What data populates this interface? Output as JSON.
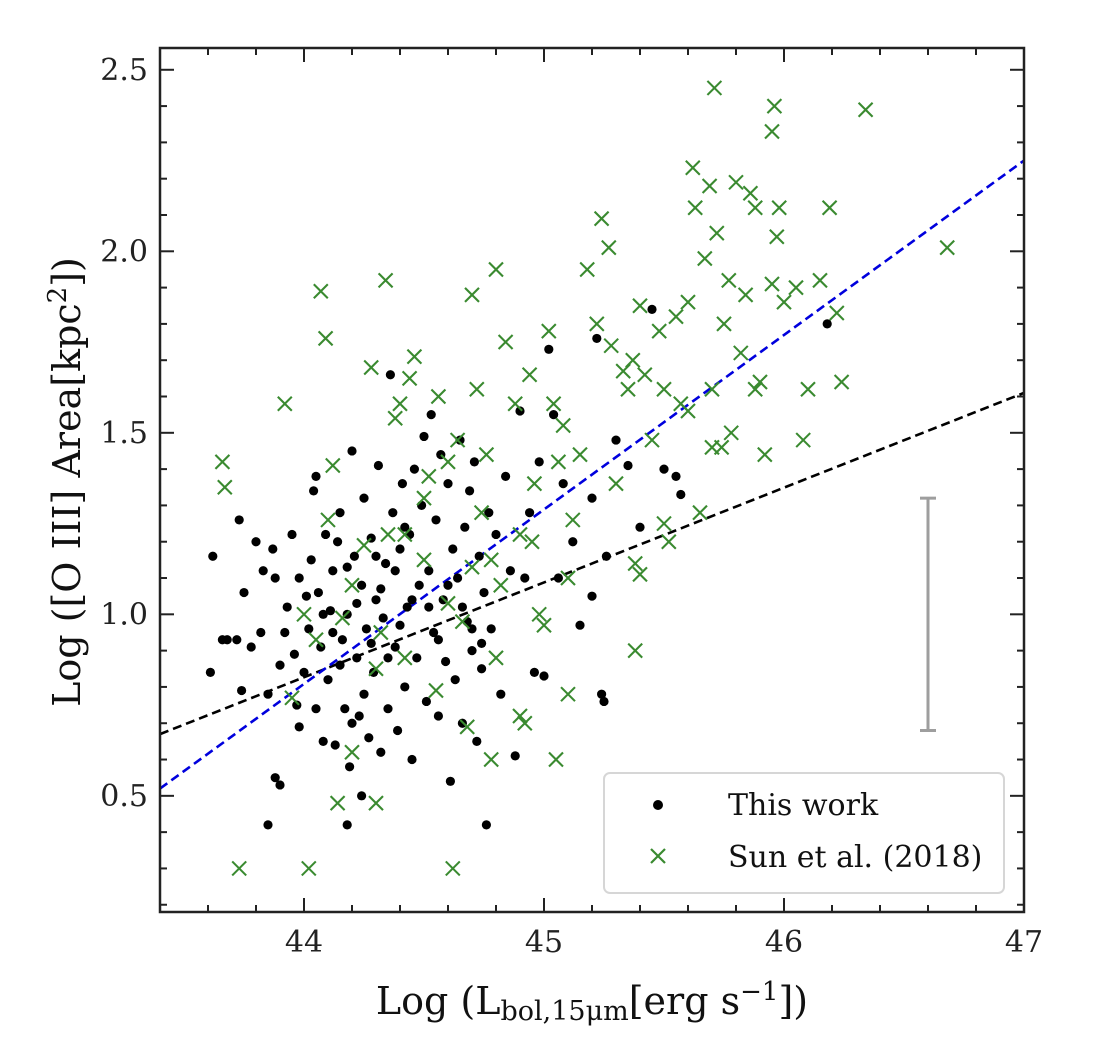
{
  "chart_data": {
    "type": "scatter",
    "title": "",
    "xlabel": {
      "main": "Log (L",
      "sub": "bol,15μm",
      "bracket": "[erg s",
      "sup": "−1",
      "end": "])"
    },
    "ylabel": {
      "main": "Log ([O III] Area[kpc",
      "sup": "2",
      "end": "])"
    },
    "xlim": [
      43.4,
      47.0
    ],
    "ylim": [
      0.18,
      2.56
    ],
    "x_major_ticks": [
      44,
      45,
      46,
      47
    ],
    "x_tick_labels": [
      "44",
      "45",
      "46",
      "47"
    ],
    "y_major_ticks": [
      0.5,
      1.0,
      1.5,
      2.0,
      2.5
    ],
    "y_tick_labels": [
      "0.5",
      "1.0",
      "1.5",
      "2.0",
      "2.5"
    ],
    "grid": false,
    "legend_position": "lower-right",
    "legend": [
      {
        "label": "This work",
        "marker": "dot",
        "color": "#000000"
      },
      {
        "label": "Sun et al. (2018)",
        "marker": "x",
        "color": "#3a8a30"
      }
    ],
    "fit_lines": [
      {
        "color": "#000000",
        "style": "dashed",
        "x": [
          43.4,
          47.0
        ],
        "y": [
          0.67,
          1.61
        ]
      },
      {
        "color": "#0000dd",
        "style": "dashed",
        "x": [
          43.4,
          47.0
        ],
        "y": [
          0.52,
          2.25
        ]
      }
    ],
    "error_bar": {
      "x": 46.6,
      "y_low": 0.68,
      "y_high": 1.32,
      "color": "#9e9e9e"
    },
    "series": [
      {
        "name": "This work",
        "marker": "dot",
        "color": "#000000",
        "points": [
          [
            43.62,
            1.16
          ],
          [
            43.61,
            0.84
          ],
          [
            43.66,
            0.93
          ],
          [
            43.68,
            0.93
          ],
          [
            43.72,
            0.93
          ],
          [
            43.74,
            0.79
          ],
          [
            43.73,
            1.26
          ],
          [
            43.75,
            1.06
          ],
          [
            43.78,
            0.91
          ],
          [
            43.8,
            1.2
          ],
          [
            43.82,
            0.95
          ],
          [
            43.83,
            1.12
          ],
          [
            43.85,
            0.78
          ],
          [
            43.87,
            1.18
          ],
          [
            43.88,
            1.1
          ],
          [
            43.9,
            0.86
          ],
          [
            43.92,
            0.95
          ],
          [
            43.93,
            1.02
          ],
          [
            43.95,
            1.22
          ],
          [
            43.96,
            0.89
          ],
          [
            43.97,
            0.75
          ],
          [
            43.98,
            1.1
          ],
          [
            44.0,
            0.84
          ],
          [
            44.01,
            1.05
          ],
          [
            44.02,
            0.96
          ],
          [
            44.03,
            1.15
          ],
          [
            44.04,
            1.34
          ],
          [
            44.05,
            1.38
          ],
          [
            44.06,
            1.06
          ],
          [
            44.07,
            0.91
          ],
          [
            44.08,
            0.65
          ],
          [
            44.09,
            1.22
          ],
          [
            44.1,
            0.82
          ],
          [
            44.11,
            1.01
          ],
          [
            44.12,
            1.12
          ],
          [
            44.13,
            0.64
          ],
          [
            44.14,
            1.2
          ],
          [
            44.15,
            1.28
          ],
          [
            44.16,
            0.93
          ],
          [
            44.17,
            0.74
          ],
          [
            44.18,
            1.0
          ],
          [
            44.19,
            0.58
          ],
          [
            44.2,
            1.45
          ],
          [
            44.21,
            1.16
          ],
          [
            44.22,
            0.88
          ],
          [
            44.23,
            0.72
          ],
          [
            44.24,
            1.08
          ],
          [
            44.25,
            1.32
          ],
          [
            44.26,
            0.96
          ],
          [
            44.27,
            0.66
          ],
          [
            44.28,
            1.21
          ],
          [
            44.29,
            0.84
          ],
          [
            44.3,
            1.04
          ],
          [
            44.31,
            1.41
          ],
          [
            44.32,
            0.62
          ],
          [
            44.33,
            0.99
          ],
          [
            44.34,
            1.14
          ],
          [
            44.35,
            0.74
          ],
          [
            44.36,
            1.66
          ],
          [
            44.37,
            1.28
          ],
          [
            44.38,
            0.91
          ],
          [
            44.39,
            0.68
          ],
          [
            44.4,
            1.18
          ],
          [
            44.41,
            1.36
          ],
          [
            44.42,
            0.8
          ],
          [
            44.43,
            1.02
          ],
          [
            44.44,
            1.22
          ],
          [
            44.45,
            0.6
          ],
          [
            44.46,
            1.4
          ],
          [
            44.47,
            0.88
          ],
          [
            44.48,
            1.08
          ],
          [
            44.49,
            1.3
          ],
          [
            44.5,
            1.49
          ],
          [
            44.51,
            0.76
          ],
          [
            44.52,
            1.12
          ],
          [
            44.53,
            1.55
          ],
          [
            44.54,
            0.95
          ],
          [
            44.55,
            1.26
          ],
          [
            44.56,
            0.72
          ],
          [
            44.57,
            1.44
          ],
          [
            44.58,
            1.04
          ],
          [
            44.59,
            0.87
          ],
          [
            44.6,
            1.36
          ],
          [
            44.61,
            0.54
          ],
          [
            44.62,
            1.18
          ],
          [
            44.63,
            0.82
          ],
          [
            44.64,
            1.1
          ],
          [
            44.65,
            1.48
          ],
          [
            44.66,
            0.7
          ],
          [
            44.67,
            1.24
          ],
          [
            44.68,
            0.98
          ],
          [
            44.69,
            1.34
          ],
          [
            44.7,
            0.9
          ],
          [
            44.71,
            1.42
          ],
          [
            44.72,
            0.65
          ],
          [
            44.73,
            1.16
          ],
          [
            44.74,
            0.85
          ],
          [
            44.75,
            1.06
          ],
          [
            44.76,
            0.42
          ],
          [
            44.77,
            1.28
          ],
          [
            44.78,
            0.96
          ],
          [
            44.8,
            1.22
          ],
          [
            44.82,
            0.78
          ],
          [
            44.84,
            1.38
          ],
          [
            44.86,
            1.12
          ],
          [
            44.88,
            0.61
          ],
          [
            44.9,
            1.56
          ],
          [
            44.92,
            1.1
          ],
          [
            44.94,
            1.28
          ],
          [
            44.96,
            0.84
          ],
          [
            44.98,
            1.42
          ],
          [
            45.0,
            0.83
          ],
          [
            45.02,
            1.73
          ],
          [
            45.04,
            1.55
          ],
          [
            45.06,
            1.1
          ],
          [
            45.08,
            1.36
          ],
          [
            45.12,
            1.2
          ],
          [
            45.15,
            0.97
          ],
          [
            45.2,
            1.32
          ],
          [
            45.22,
            1.76
          ],
          [
            45.24,
            0.78
          ],
          [
            45.26,
            1.16
          ],
          [
            45.3,
            1.48
          ],
          [
            45.35,
            1.41
          ],
          [
            45.4,
            1.24
          ],
          [
            45.45,
            1.84
          ],
          [
            45.5,
            1.4
          ],
          [
            45.55,
            1.38
          ],
          [
            45.57,
            1.33
          ],
          [
            45.2,
            1.05
          ],
          [
            45.25,
            0.76
          ],
          [
            44.35,
            0.88
          ],
          [
            44.4,
            0.97
          ],
          [
            44.45,
            1.04
          ],
          [
            44.32,
            1.07
          ],
          [
            44.28,
            0.92
          ],
          [
            44.22,
            1.03
          ],
          [
            44.18,
            1.13
          ],
          [
            44.12,
            0.95
          ],
          [
            44.08,
            1.0
          ],
          [
            44.3,
            1.16
          ],
          [
            44.38,
            1.12
          ],
          [
            44.42,
            1.24
          ],
          [
            44.52,
            1.02
          ],
          [
            44.56,
            0.93
          ],
          [
            44.6,
            1.08
          ],
          [
            44.66,
            1.02
          ],
          [
            44.7,
            0.96
          ],
          [
            44.74,
            0.92
          ],
          [
            44.25,
            0.78
          ],
          [
            44.2,
            0.7
          ],
          [
            44.15,
            0.86
          ],
          [
            44.05,
            0.74
          ],
          [
            43.98,
            0.69
          ],
          [
            43.88,
            0.55
          ],
          [
            43.85,
            0.42
          ],
          [
            43.9,
            0.53
          ],
          [
            44.18,
            0.42
          ],
          [
            44.24,
            0.5
          ],
          [
            46.18,
            1.8
          ]
        ]
      },
      {
        "name": "Sun et al. (2018)",
        "marker": "x",
        "color": "#3a8a30",
        "points": [
          [
            43.66,
            1.42
          ],
          [
            43.67,
            1.35
          ],
          [
            43.73,
            0.3
          ],
          [
            43.92,
            1.58
          ],
          [
            43.95,
            0.77
          ],
          [
            44.02,
            0.3
          ],
          [
            44.07,
            1.89
          ],
          [
            44.09,
            1.76
          ],
          [
            44.12,
            1.41
          ],
          [
            44.16,
            0.99
          ],
          [
            44.14,
            0.48
          ],
          [
            44.25,
            1.19
          ],
          [
            44.28,
            1.68
          ],
          [
            44.3,
            0.48
          ],
          [
            44.32,
            0.95
          ],
          [
            44.34,
            1.92
          ],
          [
            44.38,
            1.54
          ],
          [
            44.4,
            1.58
          ],
          [
            44.42,
            1.22
          ],
          [
            44.44,
            1.65
          ],
          [
            44.46,
            1.71
          ],
          [
            44.5,
            1.32
          ],
          [
            44.52,
            1.38
          ],
          [
            44.56,
            1.6
          ],
          [
            44.6,
            1.42
          ],
          [
            44.62,
            0.3
          ],
          [
            44.64,
            1.48
          ],
          [
            44.66,
            0.98
          ],
          [
            44.7,
            1.88
          ],
          [
            44.72,
            1.62
          ],
          [
            44.74,
            1.28
          ],
          [
            44.76,
            1.44
          ],
          [
            44.78,
            1.15
          ],
          [
            44.8,
            0.88
          ],
          [
            44.84,
            1.75
          ],
          [
            44.88,
            1.58
          ],
          [
            44.9,
            1.22
          ],
          [
            44.92,
            0.7
          ],
          [
            44.94,
            1.66
          ],
          [
            44.96,
            1.36
          ],
          [
            44.98,
            1.0
          ],
          [
            45.02,
            1.78
          ],
          [
            45.04,
            1.58
          ],
          [
            45.06,
            1.42
          ],
          [
            45.08,
            1.52
          ],
          [
            45.1,
            0.78
          ],
          [
            45.12,
            1.26
          ],
          [
            45.15,
            1.44
          ],
          [
            45.18,
            1.95
          ],
          [
            45.22,
            1.8
          ],
          [
            45.24,
            2.09
          ],
          [
            45.27,
            2.01
          ],
          [
            45.28,
            1.74
          ],
          [
            45.3,
            1.36
          ],
          [
            45.33,
            1.67
          ],
          [
            45.35,
            1.62
          ],
          [
            45.37,
            1.7
          ],
          [
            45.38,
            1.14
          ],
          [
            45.4,
            1.85
          ],
          [
            45.42,
            1.66
          ],
          [
            45.45,
            1.48
          ],
          [
            45.48,
            1.78
          ],
          [
            45.5,
            1.62
          ],
          [
            45.52,
            1.2
          ],
          [
            45.55,
            1.82
          ],
          [
            45.57,
            1.58
          ],
          [
            45.6,
            1.86
          ],
          [
            45.62,
            2.23
          ],
          [
            45.63,
            2.12
          ],
          [
            45.65,
            1.28
          ],
          [
            45.67,
            1.98
          ],
          [
            45.69,
            2.18
          ],
          [
            45.7,
            1.62
          ],
          [
            45.71,
            2.45
          ],
          [
            45.72,
            2.05
          ],
          [
            45.74,
            1.46
          ],
          [
            45.75,
            1.8
          ],
          [
            45.77,
            1.92
          ],
          [
            45.78,
            1.5
          ],
          [
            45.8,
            2.19
          ],
          [
            45.82,
            1.72
          ],
          [
            45.84,
            1.88
          ],
          [
            45.86,
            2.16
          ],
          [
            45.88,
            2.12
          ],
          [
            45.9,
            1.64
          ],
          [
            45.92,
            1.44
          ],
          [
            45.95,
            2.33
          ],
          [
            45.96,
            2.4
          ],
          [
            45.97,
            2.04
          ],
          [
            45.98,
            2.12
          ],
          [
            46.0,
            1.86
          ],
          [
            46.05,
            1.9
          ],
          [
            46.08,
            1.48
          ],
          [
            46.1,
            1.62
          ],
          [
            46.15,
            1.92
          ],
          [
            46.19,
            2.12
          ],
          [
            46.22,
            1.83
          ],
          [
            46.24,
            1.64
          ],
          [
            46.34,
            2.39
          ],
          [
            46.68,
            2.01
          ],
          [
            44.8,
            1.95
          ],
          [
            44.1,
            1.26
          ],
          [
            44.2,
            0.62
          ],
          [
            44.3,
            0.85
          ],
          [
            44.42,
            0.88
          ],
          [
            44.55,
            0.79
          ],
          [
            44.68,
            0.69
          ],
          [
            44.78,
            0.6
          ],
          [
            44.9,
            0.72
          ],
          [
            45.05,
            0.6
          ],
          [
            45.38,
            0.9
          ],
          [
            45.4,
            1.11
          ],
          [
            45.5,
            1.25
          ],
          [
            45.6,
            1.56
          ],
          [
            45.7,
            1.46
          ],
          [
            45.88,
            1.62
          ],
          [
            45.95,
            1.91
          ],
          [
            44.0,
            1.0
          ],
          [
            44.05,
            0.93
          ],
          [
            44.2,
            1.08
          ],
          [
            44.35,
            1.22
          ],
          [
            44.5,
            1.15
          ],
          [
            44.6,
            1.03
          ],
          [
            44.7,
            1.13
          ],
          [
            44.82,
            1.08
          ],
          [
            44.95,
            1.2
          ],
          [
            45.0,
            0.97
          ],
          [
            45.1,
            1.1
          ]
        ]
      }
    ]
  }
}
